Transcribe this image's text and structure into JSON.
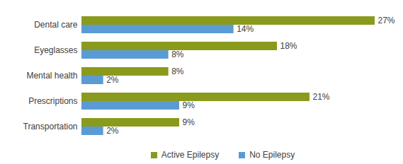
{
  "chart_data": {
    "type": "bar",
    "orientation": "horizontal",
    "categories": [
      "Dental care",
      "Eyeglasses",
      "Mental health",
      "Prescriptions",
      "Transportation"
    ],
    "series": [
      {
        "name": "Active Epilepsy",
        "color": "#8a9a1c",
        "values": [
          27,
          18,
          8,
          21,
          9
        ],
        "value_labels": [
          "27%",
          "18%",
          "8%",
          "21%",
          "9%"
        ]
      },
      {
        "name": "No Epilepsy",
        "color": "#5b9bd5",
        "values": [
          14,
          8,
          2,
          9,
          2
        ],
        "value_labels": [
          "14%",
          "8%",
          "2%",
          "9%",
          "2%"
        ]
      }
    ],
    "xlim": [
      0,
      27
    ],
    "data_labels": true,
    "tick_labels": "y",
    "legend": "bottom",
    "grid": false
  }
}
